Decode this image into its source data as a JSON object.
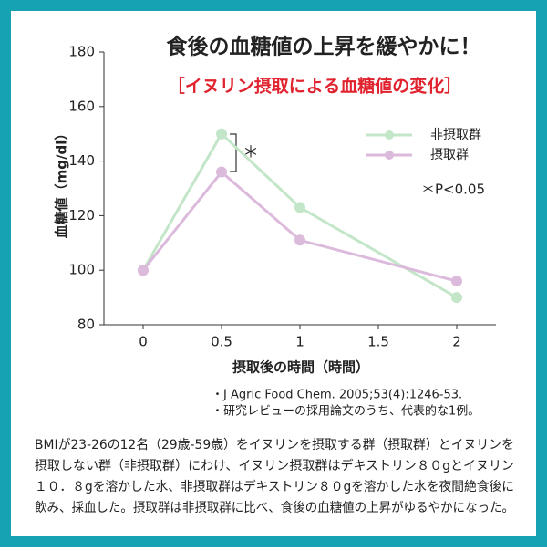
{
  "chart_data": {
    "type": "line",
    "title": "食後の血糖値の上昇を緩やかに！",
    "subtitle": "［イヌリン摂取による血糖値の変化］",
    "x": [
      0,
      0.5,
      1,
      2
    ],
    "series": [
      {
        "name": "非摂取群",
        "color": "#c4e6c8",
        "values": [
          100,
          150,
          123,
          90
        ]
      },
      {
        "name": "摂取群",
        "color": "#dcbadc",
        "values": [
          100,
          136,
          111,
          96
        ]
      }
    ],
    "xlim": [
      -0.25,
      2.25
    ],
    "xticks": [
      0,
      0.5,
      1,
      1.5,
      2
    ],
    "ylim": [
      80,
      180
    ],
    "yticks": [
      80,
      100,
      120,
      140,
      160,
      180
    ],
    "xlabel": "摂取後の時間（時間）",
    "ylabel": "血糖値（mg/dl）",
    "significance_mark": "＊",
    "significance_note": "＊P<0.05"
  },
  "notes": [
    "・J Agric Food Chem. 2005;53(4):1246-53.",
    "・研究レビューの採用論文のうち、代表的な1例。"
  ],
  "description": [
    "BMIが23-26の12名（29歳-59歳）をイヌリンを摂取する群（摂取群）とイヌリンを",
    "摂取しない群（非摂取群）にわけ、イヌリン摂取群はデキストリン８０gとイヌリン",
    "１０．８gを溶かした水、非摂取群はデキストリン８０gを溶かした水を夜間絶食後に",
    "飲み、採血した。摂取群は非摂取群に比べ、食後の血糖値の上昇がゆるやかになった。"
  ]
}
